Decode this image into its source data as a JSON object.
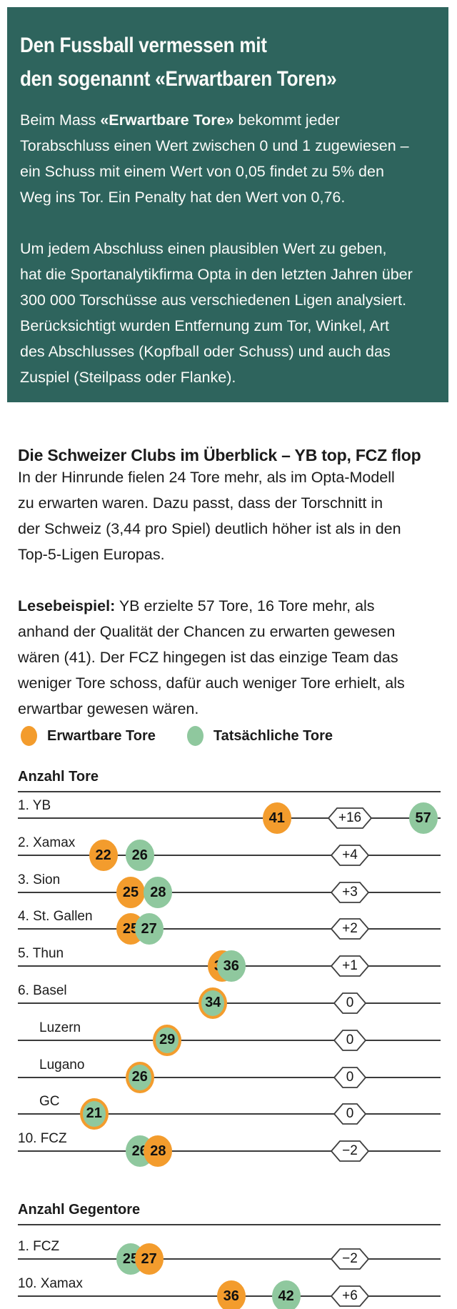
{
  "colors": {
    "panel_bg": "#2E645D",
    "expected": "#F39C2D",
    "actual": "#8FC89E",
    "line": "#3B3B3B"
  },
  "intro_panel": {
    "title_lines": [
      "Den Fussball vermessen mit",
      "den sogenannt «Erwartbaren Toren»"
    ],
    "para1_prefix": "Beim Mass ",
    "para1_bold": "«Erwartbare Tore»",
    "para1_rest": " bekommt jeder\nTorabschluss einen Wert zwischen 0 und 1 zugewiesen –\nein Schuss mit einem Wert von 0,05 findet zu 5% den\nWeg ins Tor. Ein Penalty hat den Wert von 0,76.",
    "para2_lines": [
      "Um jedem Abschluss einen plausiblen Wert zu geben,",
      "hat die Sportanalytikfirma Opta in den letzten Jahren über",
      "300 000 Torschüsse aus verschiedenen Ligen analysiert.",
      "Berücksichtigt wurden Entfernung zum Tor, Winkel, Art",
      "des Abschlusses (Kopfball oder Schuss) und auch das",
      "Zuspiel (Steilpass oder Flanke)."
    ]
  },
  "article": {
    "heading": "Die Schweizer Clubs im Überblick – YB top, FCZ flop",
    "para1_lines": [
      "In der Hinrunde fielen 24 Tore mehr, als im Opta-Modell",
      "zu erwarten waren. Dazu passt, dass der Torschnitt in",
      "der Schweiz (3,44 pro Spiel) deutlich höher ist als in den",
      "Top-5-Ligen Europas."
    ],
    "para2_bold": "Lesebeispiel:",
    "para2_rest": " YB erzielte 57 Tore, 16 Tore mehr, als\nanhand der Qualität der Chancen zu erwarten gewesen\nwären (41). Der FCZ hingegen ist das einzige Team das\nweniger Tore schoss, dafür auch weniger Tore erhielt, als\nerwartbar gewesen wären."
  },
  "legend": {
    "items": [
      {
        "label": "Erwartbare Tore",
        "color": "#F39C2D"
      },
      {
        "label": "Tatsächliche Tore",
        "color": "#8FC89E"
      }
    ]
  },
  "chart_data": {
    "type": "scatter",
    "description": "Dot plot per team: expected goals (orange) vs actual goals (green) on a shared goals axis, with difference badge",
    "legend": [
      "Erwartbare Tore",
      "Tatsächliche Tore"
    ],
    "sections": [
      {
        "title": "Anzahl Tore",
        "rows": [
          {
            "label": "1. YB",
            "indent": false,
            "expected": 41,
            "actual": 57,
            "diff": "+16"
          },
          {
            "label": "2. Xamax",
            "indent": false,
            "expected": 22,
            "actual": 26,
            "diff": "+4"
          },
          {
            "label": "3. Sion",
            "indent": false,
            "expected": 25,
            "actual": 28,
            "diff": "+3"
          },
          {
            "label": "4. St. Gallen",
            "indent": false,
            "expected": 25,
            "actual": 27,
            "diff": "+2"
          },
          {
            "label": "5. Thun",
            "indent": false,
            "expected": 35,
            "actual": 36,
            "diff": "+1"
          },
          {
            "label": "6. Basel",
            "indent": false,
            "expected": 34,
            "actual": 34,
            "diff": "0"
          },
          {
            "label": "Luzern",
            "indent": true,
            "expected": 29,
            "actual": 29,
            "diff": "0"
          },
          {
            "label": "Lugano",
            "indent": true,
            "expected": 26,
            "actual": 26,
            "diff": "0"
          },
          {
            "label": "GC",
            "indent": true,
            "expected": 21,
            "actual": 21,
            "diff": "0"
          },
          {
            "label": "10. FCZ",
            "indent": false,
            "expected": 28,
            "actual": 26,
            "diff": "−2"
          }
        ]
      },
      {
        "title": "Anzahl Gegentore",
        "rows": [
          {
            "label": "1. FCZ",
            "indent": false,
            "expected": 27,
            "actual": 25,
            "diff": "−2"
          },
          {
            "label": "10. Xamax",
            "indent": false,
            "expected": 36,
            "actual": 42,
            "diff": "+6"
          }
        ]
      }
    ]
  }
}
